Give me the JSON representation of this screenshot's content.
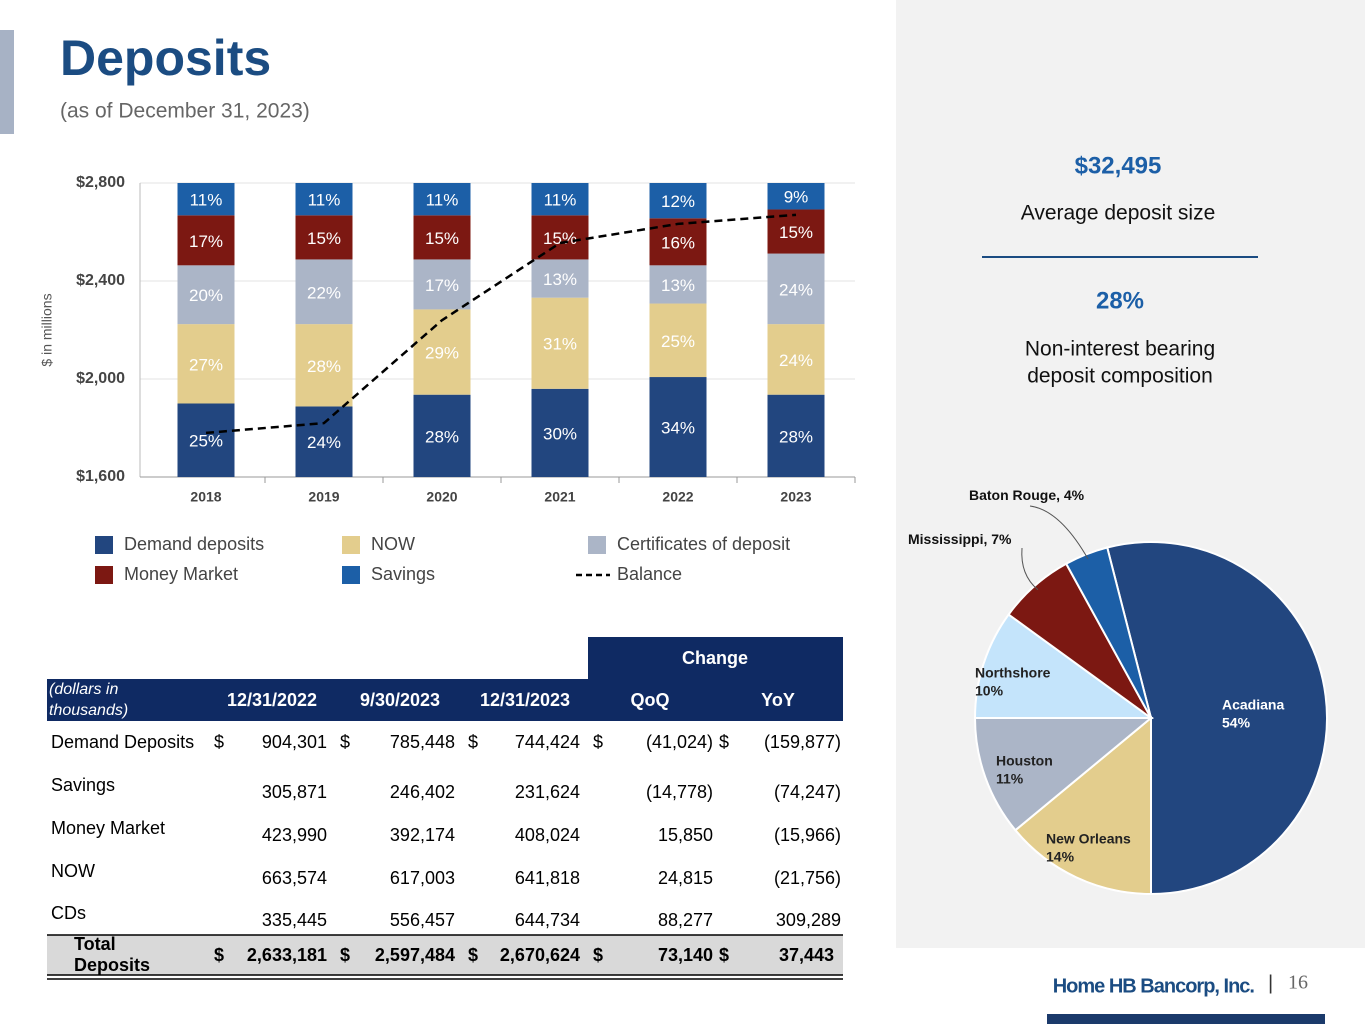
{
  "header": {
    "title": "Deposits",
    "subtitle": "(as of December 31, 2023)"
  },
  "chart_data": [
    {
      "type": "bar",
      "categories": [
        "2018",
        "2019",
        "2020",
        "2021",
        "2022",
        "2023"
      ],
      "ylabel": "$ in millions",
      "ylim": [
        1600,
        2800
      ],
      "yticks": [
        {
          "value": 1600,
          "label": "$1,600"
        },
        {
          "value": 2000,
          "label": "$2,000"
        },
        {
          "value": 2400,
          "label": "$2,400"
        },
        {
          "value": 2800,
          "label": "$2,800"
        }
      ],
      "grid": true,
      "series": [
        {
          "name": "Demand deposits",
          "color": "#22467f",
          "values": [
            25,
            24,
            28,
            30,
            34,
            28
          ],
          "value_labels": [
            "25%",
            "24%",
            "28%",
            "30%",
            "34%",
            "28%"
          ]
        },
        {
          "name": "NOW",
          "color": "#e3cd8d",
          "values": [
            27,
            28,
            29,
            31,
            25,
            24
          ],
          "value_labels": [
            "27%",
            "28%",
            "29%",
            "31%",
            "25%",
            "24%"
          ]
        },
        {
          "name": "Certificates of deposit",
          "color": "#abb5c7",
          "values": [
            20,
            22,
            17,
            13,
            13,
            24
          ],
          "value_labels": [
            "20%",
            "22%",
            "17%",
            "13%",
            "13%",
            "24%"
          ]
        },
        {
          "name": "Money Market",
          "color": "#7c1812",
          "values": [
            17,
            15,
            15,
            15,
            16,
            15
          ],
          "value_labels": [
            "17%",
            "15%",
            "15%",
            "15%",
            "16%",
            "15%"
          ]
        },
        {
          "name": "Savings",
          "color": "#1c5fa7",
          "values": [
            11,
            11,
            11,
            11,
            12,
            9
          ],
          "value_labels": [
            "11%",
            "11%",
            "11%",
            "11%",
            "12%",
            "9%"
          ]
        },
        {
          "name": "Balance",
          "type": "line",
          "color": "#000000",
          "dashed": true,
          "values": [
            1780,
            1820,
            2240,
            2555,
            2633,
            2670
          ]
        }
      ]
    },
    {
      "type": "pie",
      "categories": [
        "Acadiana",
        "New Orleans",
        "Houston",
        "Northshore",
        "Mississippi",
        "Baton Rouge"
      ],
      "values": [
        54,
        14,
        11,
        10,
        7,
        4
      ],
      "value_labels": [
        "54%",
        "14%",
        "11%",
        "10%",
        ", 7%",
        ", 4%"
      ],
      "colors": [
        "#22467f",
        "#e3cd8d",
        "#abb5c7",
        "#c4e4fb",
        "#7c1812",
        "#1c5fa7"
      ]
    }
  ],
  "stats": [
    {
      "value": "$32,495",
      "label": "Average deposit size"
    },
    {
      "value": "28%",
      "label": [
        "Non-interest bearing",
        "deposit composition"
      ]
    }
  ],
  "table": {
    "group_header": "Change",
    "columns": [
      "(dollars in thousands)",
      "12/31/2022",
      "9/30/2023",
      "12/31/2023",
      "QoQ",
      "YoY"
    ],
    "rows": [
      {
        "label": "Demand Deposits",
        "currency": "$",
        "values": [
          "904,301",
          "785,448",
          "744,424",
          "(41,024)",
          "(159,877)"
        ]
      },
      {
        "label": "Savings",
        "values": [
          "305,871",
          "246,402",
          "231,624",
          "(14,778)",
          "(74,247)"
        ]
      },
      {
        "label": "Money Market",
        "values": [
          "423,990",
          "392,174",
          "408,024",
          "15,850",
          "(15,966)"
        ]
      },
      {
        "label": "NOW",
        "values": [
          "663,574",
          "617,003",
          "641,818",
          "24,815",
          "(21,756)"
        ]
      },
      {
        "label": "CDs",
        "values": [
          "335,445",
          "556,457",
          "644,734",
          "88,277",
          "309,289"
        ]
      },
      {
        "label": "Total Deposits",
        "currency": "$",
        "total": true,
        "values": [
          "2,633,181",
          "2,597,484",
          "2,670,624",
          "73,140",
          "37,443"
        ]
      }
    ]
  },
  "footer": {
    "logo": "Home HB Bancorp, Inc.",
    "separator": "|",
    "page": "16"
  }
}
